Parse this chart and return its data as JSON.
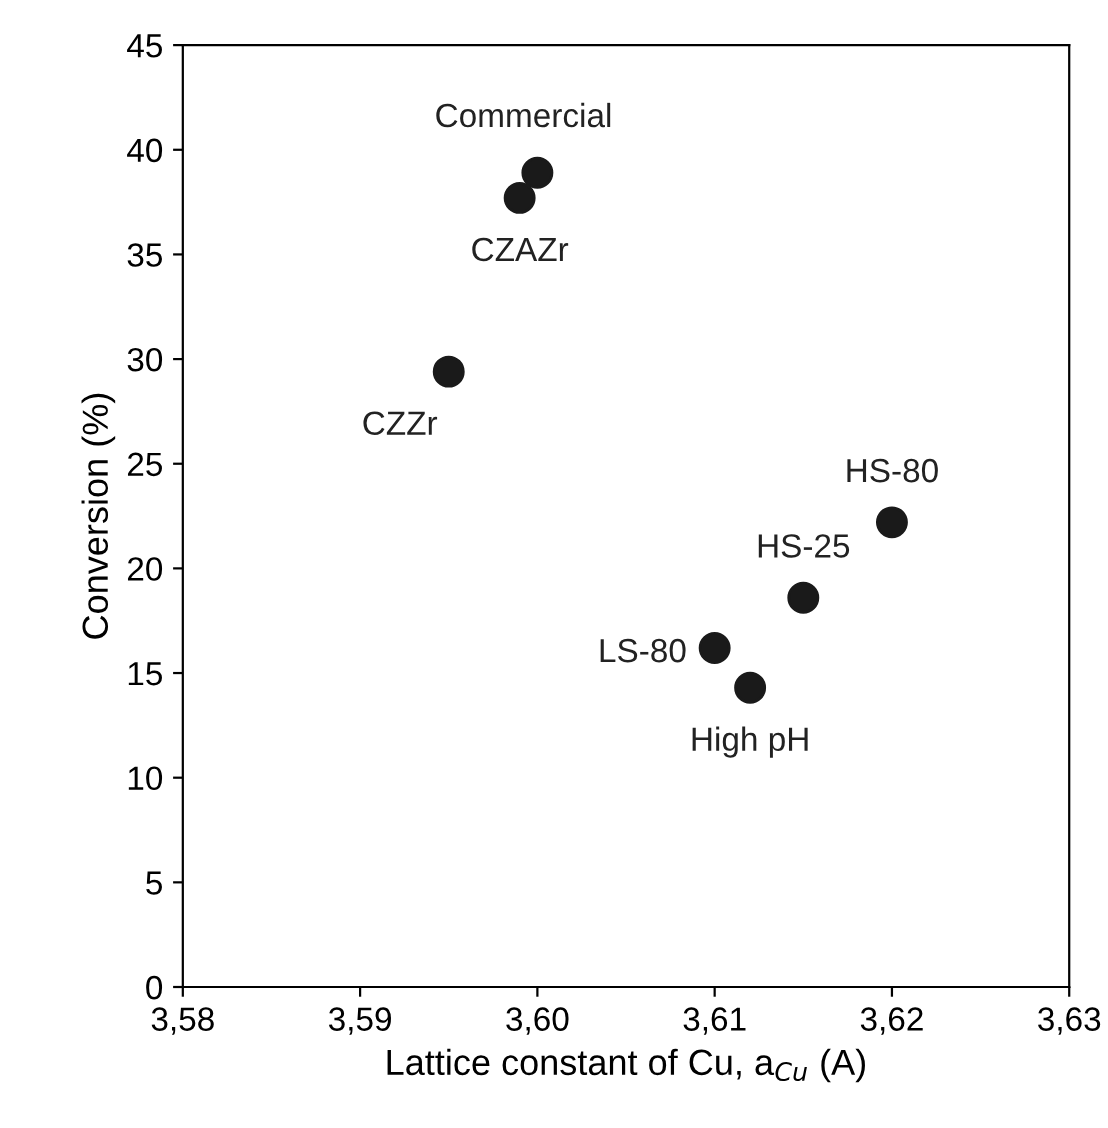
{
  "chart_data": {
    "type": "scatter",
    "xlabel": "Lattice constant of Cu, a$_{Cu}$ (A)",
    "ylabel": "Conversion (%)",
    "x": [
      3.6,
      3.599,
      3.595,
      3.62,
      3.615,
      3.61,
      3.612
    ],
    "series": [
      {
        "color": "#1a1a1a",
        "values": [
          38.9,
          37.7,
          29.4,
          22.2,
          18.6,
          16.2,
          14.3
        ]
      }
    ],
    "marker": "circle",
    "annotations": [
      {
        "text": "Commercial",
        "x": 3.6,
        "y": 38.9
      },
      {
        "text": "CZAZr",
        "x": 3.599,
        "y": 37.7
      },
      {
        "text": "CZZr",
        "x": 3.595,
        "y": 29.4
      },
      {
        "text": "HS-80",
        "x": 3.62,
        "y": 22.2
      },
      {
        "text": "HS-25",
        "x": 3.615,
        "y": 18.6
      },
      {
        "text": "LS-80",
        "x": 3.61,
        "y": 16.2
      },
      {
        "text": "High pH",
        "x": 3.612,
        "y": 14.3
      }
    ],
    "xlim": [
      3.58,
      3.63
    ],
    "xticks": [
      {
        "value": 3.58,
        "label": "3,58"
      },
      {
        "value": 3.59,
        "label": "3,59"
      },
      {
        "value": 3.6,
        "label": "3,60"
      },
      {
        "value": 3.61,
        "label": "3,61"
      },
      {
        "value": 3.62,
        "label": "3,62"
      },
      {
        "value": 3.63,
        "label": "3,63"
      }
    ],
    "ylim": [
      0,
      45
    ],
    "yticks": [
      0,
      5,
      10,
      15,
      20,
      25,
      30,
      35,
      40,
      45
    ],
    "grid": false,
    "legend": false
  }
}
